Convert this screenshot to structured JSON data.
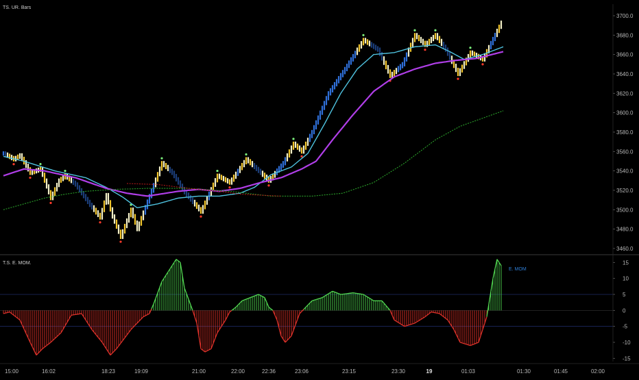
{
  "main_pane": {
    "title": "TS. UR. Bars"
  },
  "sub_pane": {
    "title": "T.S. E. MOM.",
    "legend": "E. MOM"
  },
  "chart_data": [
    {
      "type": "line",
      "title": "TS. UR. Bars",
      "y_ticks": [
        3460,
        3480,
        3500,
        3520,
        3540,
        3560,
        3580,
        3600,
        3620,
        3640,
        3660,
        3680,
        3700
      ],
      "y_tick_labels": [
        "3460.0",
        "3480.0",
        "3500.0",
        "3520.0",
        "3540.0",
        "3560.0",
        "3580.0",
        "3600.0",
        "3620.0",
        "3640.0",
        "3660.0",
        "3680.0",
        "3700.0"
      ],
      "ylim": [
        3455,
        3712
      ],
      "n_bars": 243,
      "x_tick_labels": [
        {
          "bar": 4,
          "label": "15:00",
          "bold": false
        },
        {
          "bar": 22,
          "label": "16:02",
          "bold": false
        },
        {
          "bar": 51,
          "label": "18:23",
          "bold": false
        },
        {
          "bar": 67,
          "label": "19:09",
          "bold": false
        },
        {
          "bar": 95,
          "label": "21:00",
          "bold": false
        },
        {
          "bar": 114,
          "label": "22:00",
          "bold": false
        },
        {
          "bar": 129,
          "label": "22:36",
          "bold": false
        },
        {
          "bar": 145,
          "label": "23:06",
          "bold": false
        },
        {
          "bar": 168,
          "label": "23:15",
          "bold": false
        },
        {
          "bar": 192,
          "label": "23:30",
          "bold": false
        },
        {
          "bar": 207,
          "label": "19",
          "bold": true
        },
        {
          "bar": 226,
          "label": "01:03",
          "bold": false
        },
        {
          "bar": 253,
          "label": "01:30",
          "bold": false
        },
        {
          "bar": 271,
          "label": "01:45",
          "bold": false
        },
        {
          "bar": 289,
          "label": "02:00",
          "bold": false
        }
      ],
      "price_path": [
        [
          0,
          3558
        ],
        [
          5,
          3552
        ],
        [
          8,
          3556
        ],
        [
          13,
          3538
        ],
        [
          18,
          3542
        ],
        [
          23,
          3512
        ],
        [
          27,
          3530
        ],
        [
          30,
          3535
        ],
        [
          35,
          3526
        ],
        [
          42,
          3505
        ],
        [
          47,
          3492
        ],
        [
          50,
          3515
        ],
        [
          53,
          3493
        ],
        [
          57,
          3472
        ],
        [
          62,
          3500
        ],
        [
          65,
          3480
        ],
        [
          77,
          3548
        ],
        [
          82,
          3538
        ],
        [
          88,
          3518
        ],
        [
          96,
          3498
        ],
        [
          104,
          3535
        ],
        [
          110,
          3528
        ],
        [
          118,
          3552
        ],
        [
          124,
          3540
        ],
        [
          129,
          3530
        ],
        [
          136,
          3548
        ],
        [
          141,
          3568
        ],
        [
          145,
          3560
        ],
        [
          150,
          3580
        ],
        [
          158,
          3620
        ],
        [
          166,
          3645
        ],
        [
          175,
          3675
        ],
        [
          182,
          3665
        ],
        [
          188,
          3638
        ],
        [
          194,
          3650
        ],
        [
          200,
          3680
        ],
        [
          205,
          3670
        ],
        [
          210,
          3680
        ],
        [
          215,
          3665
        ],
        [
          221,
          3640
        ],
        [
          227,
          3662
        ],
        [
          233,
          3655
        ],
        [
          243,
          3697
        ]
      ],
      "series": [
        {
          "name": "",
          "color": "#4fc3e0",
          "points": [
            [
              0,
              3555
            ],
            [
              10,
              3550
            ],
            [
              25,
              3540
            ],
            [
              40,
              3533
            ],
            [
              50,
              3523
            ],
            [
              58,
              3513
            ],
            [
              65,
              3502
            ],
            [
              75,
              3506
            ],
            [
              85,
              3512
            ],
            [
              95,
              3514
            ],
            [
              105,
              3514
            ],
            [
              115,
              3517
            ],
            [
              122,
              3523
            ],
            [
              130,
              3536
            ],
            [
              140,
              3544
            ],
            [
              148,
              3558
            ],
            [
              156,
              3588
            ],
            [
              164,
              3620
            ],
            [
              172,
              3645
            ],
            [
              180,
              3660
            ],
            [
              190,
              3662
            ],
            [
              200,
              3668
            ],
            [
              210,
              3670
            ],
            [
              217,
              3663
            ],
            [
              224,
              3655
            ],
            [
              233,
              3660
            ],
            [
              243,
              3668
            ]
          ]
        },
        {
          "name": "",
          "color": "#b03ee8",
          "points": [
            [
              0,
              3535
            ],
            [
              10,
              3542
            ],
            [
              20,
              3540
            ],
            [
              35,
              3533
            ],
            [
              50,
              3522
            ],
            [
              60,
              3517
            ],
            [
              70,
              3514
            ],
            [
              85,
              3519
            ],
            [
              95,
              3521
            ],
            [
              105,
              3519
            ],
            [
              115,
              3522
            ],
            [
              125,
              3528
            ],
            [
              135,
              3533
            ],
            [
              145,
              3542
            ],
            [
              152,
              3550
            ],
            [
              160,
              3572
            ],
            [
              170,
              3598
            ],
            [
              180,
              3622
            ],
            [
              190,
              3637
            ],
            [
              200,
              3645
            ],
            [
              210,
              3651
            ],
            [
              220,
              3654
            ],
            [
              230,
              3656
            ],
            [
              243,
              3663
            ]
          ]
        },
        {
          "name": "",
          "color": "#2aa02a",
          "dashed": true,
          "points": [
            [
              0,
              3500
            ],
            [
              10,
              3506
            ],
            [
              20,
              3512
            ],
            [
              30,
              3516
            ],
            [
              40,
              3519
            ],
            [
              55,
              3521
            ],
            [
              70,
              3522
            ],
            [
              90,
              3522
            ],
            [
              110,
              3519
            ],
            [
              130,
              3514
            ],
            [
              150,
              3514
            ],
            [
              165,
              3517
            ],
            [
              180,
              3528
            ],
            [
              195,
              3548
            ],
            [
              210,
              3572
            ],
            [
              222,
              3586
            ],
            [
              243,
              3602
            ]
          ]
        },
        {
          "name": "",
          "color": "#b01818",
          "dashed": true,
          "points": [
            [
              60,
              3527
            ],
            [
              75,
              3526
            ],
            [
              90,
              3522
            ],
            [
              105,
              3519
            ],
            [
              115,
              3516
            ],
            [
              125,
              3515
            ],
            [
              135,
              3514
            ]
          ]
        }
      ]
    },
    {
      "type": "bar",
      "title": "T.S. E. MOM.",
      "legend": [
        "E. MOM"
      ],
      "y_ticks": [
        -15,
        -10,
        -5,
        0,
        5,
        10,
        15
      ],
      "y_tick_labels": [
        "-15",
        "-10",
        "-5",
        "0",
        "5",
        "10",
        "15"
      ],
      "ylim": [
        -16,
        17
      ],
      "positive_color": "#52d852",
      "negative_color": "#e0322a",
      "momentum_path": [
        [
          0,
          -1
        ],
        [
          3,
          -0.5
        ],
        [
          8,
          -3
        ],
        [
          13,
          -10
        ],
        [
          16,
          -14
        ],
        [
          19,
          -12
        ],
        [
          23,
          -10
        ],
        [
          28,
          -7
        ],
        [
          33,
          -1.5
        ],
        [
          38,
          -1
        ],
        [
          43,
          -6
        ],
        [
          48,
          -10
        ],
        [
          52,
          -14
        ],
        [
          55,
          -12
        ],
        [
          62,
          -6
        ],
        [
          68,
          -2
        ],
        [
          71,
          -1
        ],
        [
          73,
          2
        ],
        [
          77,
          9
        ],
        [
          81,
          13
        ],
        [
          84,
          16
        ],
        [
          86,
          15
        ],
        [
          88,
          7
        ],
        [
          92,
          0
        ],
        [
          94,
          -4
        ],
        [
          96,
          -12
        ],
        [
          98,
          -13
        ],
        [
          101,
          -12
        ],
        [
          104,
          -7
        ],
        [
          108,
          -3
        ],
        [
          110,
          -0.5
        ],
        [
          113,
          1
        ],
        [
          116,
          3
        ],
        [
          120,
          4
        ],
        [
          124,
          5
        ],
        [
          127,
          4
        ],
        [
          129,
          1
        ],
        [
          131,
          0
        ],
        [
          133,
          -3
        ],
        [
          135,
          -8
        ],
        [
          137,
          -10
        ],
        [
          140,
          -8
        ],
        [
          144,
          -1
        ],
        [
          147,
          1
        ],
        [
          150,
          3
        ],
        [
          155,
          4
        ],
        [
          160,
          6
        ],
        [
          164,
          5
        ],
        [
          170,
          5.5
        ],
        [
          175,
          5
        ],
        [
          180,
          3
        ],
        [
          184,
          3
        ],
        [
          188,
          0
        ],
        [
          190,
          -3
        ],
        [
          195,
          -5
        ],
        [
          200,
          -4
        ],
        [
          205,
          -2
        ],
        [
          208,
          -0.5
        ],
        [
          212,
          -1
        ],
        [
          216,
          -3
        ],
        [
          219,
          -6
        ],
        [
          222,
          -10
        ],
        [
          227,
          -11
        ],
        [
          231,
          -10
        ],
        [
          235,
          -2
        ],
        [
          238,
          10
        ],
        [
          240,
          16
        ],
        [
          242,
          14
        ]
      ],
      "levels": [
        5,
        -5
      ]
    }
  ]
}
